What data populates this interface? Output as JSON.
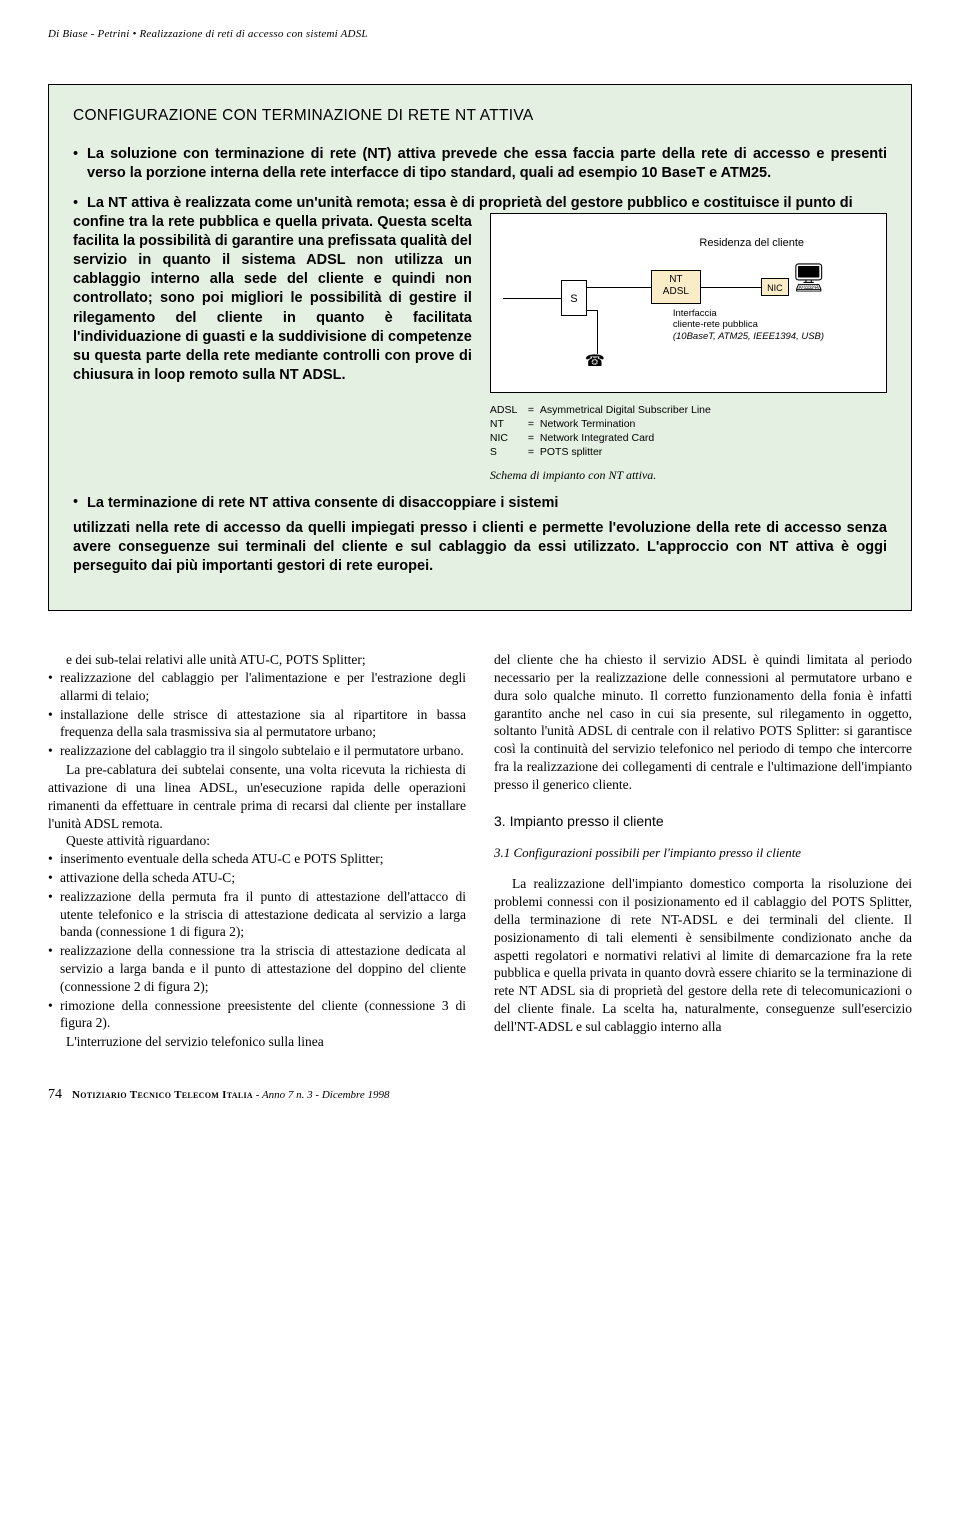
{
  "running_head": "Di Biase - Petrini • Realizzazione di reti di accesso con sistemi ADSL",
  "box": {
    "title": "CONFIGURAZIONE CON TERMINAZIONE DI RETE NT ATTIVA",
    "b1": "La soluzione con terminazione di rete (NT) attiva prevede che essa faccia parte della rete di accesso e presenti verso la porzione interna della rete interfacce di tipo standard, quali ad esempio 10 BaseT e ATM25.",
    "b2_intro": "La NT attiva è realizzata come un'unità remota; essa è di proprietà del gestore pubblico e costituisce il punto di",
    "b2_left": "confine tra la rete pubblica e quella privata. Questa scelta facilita la possibilità di garantire una prefissata qualità del servizio in quanto il sistema ADSL non utilizza un cablaggio interno alla sede del cliente e quindi non controllato; sono poi migliori le possibilità di gestire il rilegamento del cliente in quanto è facilitata l'individuazione di guasti e la suddivisione di competenze su questa parte della rete mediante controlli con prove di chiusura in loop remoto sulla NT ADSL.",
    "b3_left_start": "La terminazione di rete NT attiva consente di disaccoppiare i sistemi",
    "b3_full": "utilizzati nella rete di accesso da quelli impiegati presso i clienti e permette l'evoluzione della rete di accesso senza avere conseguenze sui terminali del cliente e sul cablaggio da essi utilizzato. L'approccio con NT attiva è oggi perseguito dai più importanti gestori di rete europei.",
    "figure": {
      "residenza": "Residenza del cliente",
      "s": "S",
      "nt": "NT",
      "adsl": "ADSL",
      "nic": "NIC",
      "interfaccia": "Interfaccia",
      "cliente_rete": "cliente-rete pubblica",
      "iface_detail": "(10BaseT, ATM25, IEEE1394, USB)",
      "legend": [
        {
          "k": "ADSL",
          "v": "Asymmetrical Digital Subscriber Line"
        },
        {
          "k": "NT",
          "v": "Network Termination"
        },
        {
          "k": "NIC",
          "v": "Network Integrated Card"
        },
        {
          "k": "S",
          "v": "POTS splitter"
        }
      ],
      "caption": "Schema di impianto con NT attiva."
    }
  },
  "left": {
    "p0": "e dei sub-telai relativi alle unità ATU-C, POTS Splitter;",
    "li1": "realizzazione del cablaggio per l'alimentazione e per l'estrazione degli allarmi di telaio;",
    "li2": "installazione delle strisce di attestazione sia al ripartitore in bassa frequenza della sala trasmissiva sia al permutatore urbano;",
    "li3": "realizzazione del cablaggio tra il singolo subtelaio e il permutatore urbano.",
    "p1": "La pre-cablatura dei subtelai consente, una volta ricevuta la richiesta di attivazione di una linea ADSL, un'esecuzione rapida delle operazioni rimanenti da effettuare in centrale prima di recarsi dal cliente per installare l'unità ADSL remota.",
    "p2": "Queste attività riguardano:",
    "li4": "inserimento eventuale della scheda ATU-C e POTS Splitter;",
    "li5": "attivazione della scheda ATU-C;",
    "li6": "realizzazione della permuta fra il punto di attestazione dell'attacco di utente telefonico e la striscia di attestazione dedicata al servizio a larga banda (connessione 1 di figura 2);",
    "li7": "realizzazione della connessione tra la striscia di attestazione dedicata al servizio a larga banda e il punto di attestazione del doppino del cliente (connessione 2 di figura 2);",
    "li8": "rimozione della connessione preesistente del cliente (connessione 3 di figura 2).",
    "p3": "L'interruzione del servizio telefonico sulla linea"
  },
  "right": {
    "p0": "del cliente che ha chiesto il servizio ADSL è quindi limitata al periodo necessario per la realizzazione delle connessioni al permutatore urbano e dura solo qualche minuto. Il corretto funzionamento della fonia è infatti garantito anche nel caso in cui sia presente, sul rilegamento in oggetto, soltanto l'unità ADSL di centrale con il relativo POTS Splitter: si garantisce così la continuità del servizio telefonico nel periodo di tempo che intercorre fra la realizzazione dei collegamenti di centrale e l'ultimazione dell'impianto presso il generico cliente.",
    "h3": "3. Impianto presso il cliente",
    "h31": "3.1 Configurazioni possibili per l'impianto presso il cliente",
    "p1": "La realizzazione dell'impianto domestico comporta la risoluzione dei problemi connessi con il posizionamento ed il cablaggio del POTS Splitter, della terminazione di rete NT-ADSL e dei terminali del cliente. Il posizionamento di tali elementi è sensibilmente condizionato anche da aspetti regolatori e normativi relativi al limite di demarcazione fra la rete pubblica e quella privata in quanto dovrà essere chiarito se la terminazione di rete NT ADSL sia di proprietà del gestore della rete di telecomunicazioni o del cliente finale. La scelta ha, naturalmente, conseguenze sull'esercizio dell'NT-ADSL e sul cablaggio interno alla"
  },
  "footer": {
    "page": "74",
    "journal": "Notiziario Tecnico Telecom Italia",
    "issue": " - Anno 7 n. 3 - Dicembre 1998"
  },
  "colors": {
    "box_bg": "#e4f0e2",
    "ntadsl_bg": "#fbecc8"
  }
}
